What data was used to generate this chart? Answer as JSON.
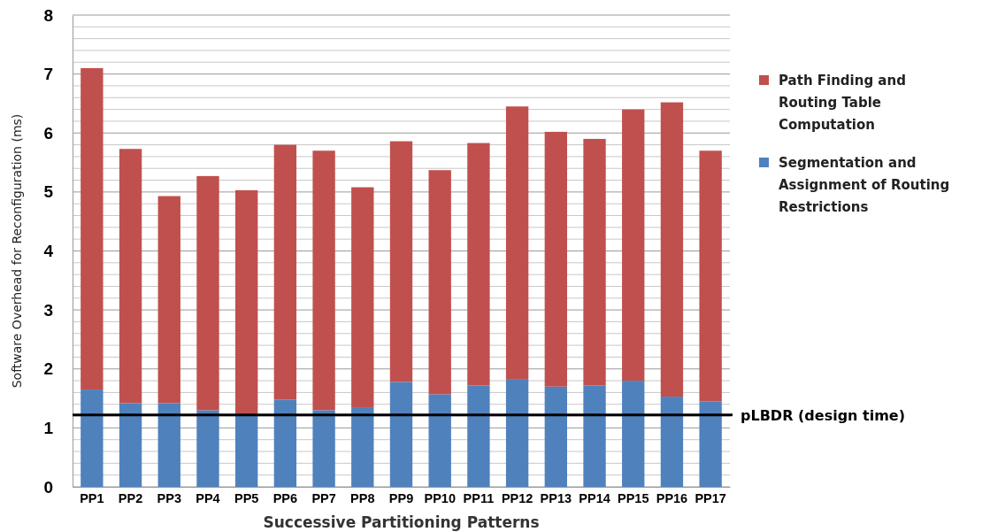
{
  "chart_data": {
    "type": "bar",
    "stacked": true,
    "xlabel": "Successive Partitioning Patterns",
    "ylabel": "Software Overhead for  Reconfiguration (ms)",
    "categories": [
      "PP1",
      "PP2",
      "PP3",
      "PP4",
      "PP5",
      "PP6",
      "PP7",
      "PP8",
      "PP9",
      "PP10",
      "PP11",
      "PP12",
      "PP13",
      "PP14",
      "PP15",
      "PP16",
      "PP17"
    ],
    "series": [
      {
        "name": "Segmentation and Assignment of Routing Restrictions",
        "color": "#4f81bd",
        "values": [
          1.65,
          1.42,
          1.42,
          1.3,
          1.22,
          1.48,
          1.3,
          1.35,
          1.78,
          1.57,
          1.72,
          1.83,
          1.7,
          1.72,
          1.8,
          1.53,
          1.45
        ]
      },
      {
        "name": "Path Finding and Routing Table Computation",
        "color": "#c0504d",
        "values": [
          5.45,
          4.31,
          3.51,
          3.97,
          3.81,
          4.32,
          4.4,
          3.73,
          4.08,
          3.8,
          4.11,
          4.62,
          4.32,
          4.18,
          4.6,
          4.99,
          4.25
        ]
      }
    ],
    "ylim": [
      0,
      8
    ],
    "yticks": [
      0,
      {
        "value": 0.2,
        "label": null
      },
      {
        "value": 0.4,
        "label": null
      },
      {
        "value": 0.6,
        "label": null
      },
      {
        "value": 0.8,
        "label": null
      },
      1,
      {
        "value": 1.2,
        "label": null
      },
      {
        "value": 1.4,
        "label": null
      },
      {
        "value": 1.6,
        "label": null
      },
      {
        "value": 1.8,
        "label": null
      },
      2,
      {
        "value": 2.2,
        "label": null
      },
      {
        "value": 2.4,
        "label": null
      },
      {
        "value": 2.6,
        "label": null
      },
      {
        "value": 2.8,
        "label": null
      },
      3,
      {
        "value": 3.2,
        "label": null
      },
      {
        "value": 3.4,
        "label": null
      },
      {
        "value": 3.6,
        "label": null
      },
      {
        "value": 3.8,
        "label": null
      },
      4,
      {
        "value": 4.2,
        "label": null
      },
      {
        "value": 4.4,
        "label": null
      },
      {
        "value": 4.6,
        "label": null
      },
      {
        "value": 4.8,
        "label": null
      },
      5,
      {
        "value": 5.2,
        "label": null
      },
      {
        "value": 5.4,
        "label": null
      },
      {
        "value": 5.6,
        "label": null
      },
      {
        "value": 5.8,
        "label": null
      },
      6,
      {
        "value": 6.2,
        "label": null
      },
      {
        "value": 6.4,
        "label": null
      },
      {
        "value": 6.6,
        "label": null
      },
      {
        "value": 6.8,
        "label": null
      },
      7,
      {
        "value": 7.2,
        "label": null
      },
      {
        "value": 7.4,
        "label": null
      },
      {
        "value": 7.6,
        "label": null
      },
      {
        "value": 7.8,
        "label": null
      },
      8
    ],
    "grid": "y",
    "legend": "right",
    "ref_lines": [
      {
        "axis": "y",
        "value": 1.22,
        "label": "pLBDR (design time)",
        "color": "#000000"
      }
    ]
  }
}
